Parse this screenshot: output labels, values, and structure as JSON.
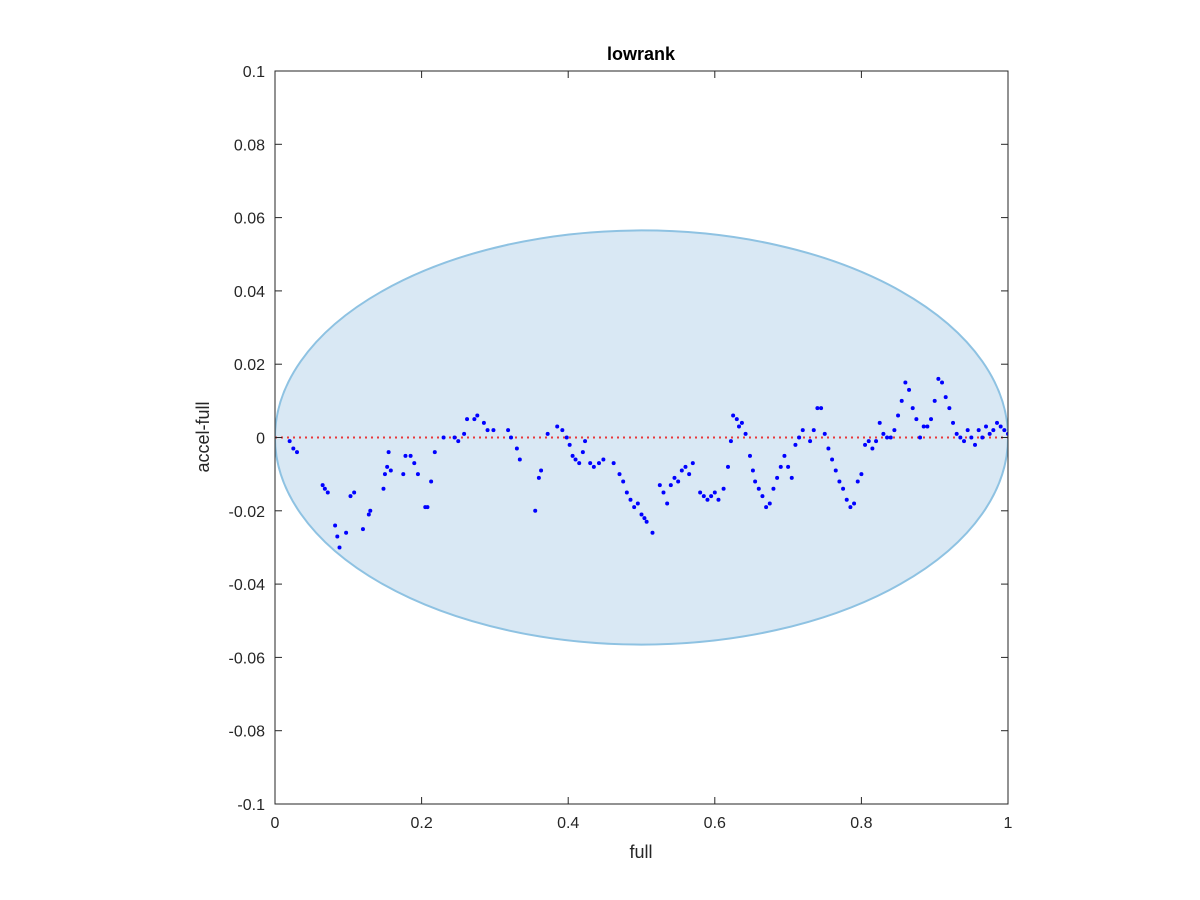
{
  "chart_data": {
    "type": "scatter",
    "title": "lowrank",
    "xlabel": "full",
    "ylabel": "accel-full",
    "xlim": [
      0,
      1
    ],
    "ylim": [
      -0.1,
      0.1
    ],
    "xticks": [
      0,
      0.2,
      0.4,
      0.6,
      0.8,
      1
    ],
    "xtick_labels": [
      "0",
      "0.2",
      "0.4",
      "0.6",
      "0.8",
      "1"
    ],
    "yticks": [
      -0.1,
      -0.08,
      -0.06,
      -0.04,
      -0.02,
      0,
      0.02,
      0.04,
      0.06,
      0.08,
      0.1
    ],
    "ytick_labels": [
      "-0.1",
      "-0.08",
      "-0.06",
      "-0.04",
      "-0.02",
      "0",
      "0.02",
      "0.04",
      "0.06",
      "0.08",
      "0.1"
    ],
    "grid": false,
    "reference_line": {
      "y": 0,
      "style": "dotted",
      "color": "#e8393b"
    },
    "ellipse_region": {
      "center": [
        0.5,
        0
      ],
      "semi_axes": [
        0.5,
        0.0565
      ],
      "fill": "#d9e8f4",
      "stroke": "#8ec2e2"
    },
    "point_color": "#0000ff",
    "points": [
      [
        0.02,
        -0.001
      ],
      [
        0.025,
        -0.003
      ],
      [
        0.03,
        -0.004
      ],
      [
        0.065,
        -0.013
      ],
      [
        0.068,
        -0.014
      ],
      [
        0.072,
        -0.015
      ],
      [
        0.082,
        -0.024
      ],
      [
        0.085,
        -0.027
      ],
      [
        0.088,
        -0.03
      ],
      [
        0.097,
        -0.026
      ],
      [
        0.103,
        -0.016
      ],
      [
        0.108,
        -0.015
      ],
      [
        0.12,
        -0.025
      ],
      [
        0.128,
        -0.021
      ],
      [
        0.13,
        -0.02
      ],
      [
        0.148,
        -0.014
      ],
      [
        0.15,
        -0.01
      ],
      [
        0.153,
        -0.008
      ],
      [
        0.155,
        -0.004
      ],
      [
        0.158,
        -0.009
      ],
      [
        0.175,
        -0.01
      ],
      [
        0.178,
        -0.005
      ],
      [
        0.185,
        -0.005
      ],
      [
        0.19,
        -0.007
      ],
      [
        0.195,
        -0.01
      ],
      [
        0.205,
        -0.019
      ],
      [
        0.208,
        -0.019
      ],
      [
        0.213,
        -0.012
      ],
      [
        0.218,
        -0.004
      ],
      [
        0.23,
        0.0
      ],
      [
        0.245,
        0.0
      ],
      [
        0.25,
        -0.001
      ],
      [
        0.258,
        0.001
      ],
      [
        0.262,
        0.005
      ],
      [
        0.272,
        0.005
      ],
      [
        0.276,
        0.006
      ],
      [
        0.285,
        0.004
      ],
      [
        0.29,
        0.002
      ],
      [
        0.298,
        0.002
      ],
      [
        0.318,
        0.002
      ],
      [
        0.322,
        0.0
      ],
      [
        0.33,
        -0.003
      ],
      [
        0.334,
        -0.006
      ],
      [
        0.355,
        -0.02
      ],
      [
        0.36,
        -0.011
      ],
      [
        0.363,
        -0.009
      ],
      [
        0.372,
        0.001
      ],
      [
        0.385,
        0.003
      ],
      [
        0.392,
        0.002
      ],
      [
        0.398,
        0.0
      ],
      [
        0.402,
        -0.002
      ],
      [
        0.406,
        -0.005
      ],
      [
        0.41,
        -0.006
      ],
      [
        0.415,
        -0.007
      ],
      [
        0.42,
        -0.004
      ],
      [
        0.423,
        -0.001
      ],
      [
        0.43,
        -0.007
      ],
      [
        0.435,
        -0.008
      ],
      [
        0.442,
        -0.007
      ],
      [
        0.448,
        -0.006
      ],
      [
        0.462,
        -0.007
      ],
      [
        0.47,
        -0.01
      ],
      [
        0.475,
        -0.012
      ],
      [
        0.48,
        -0.015
      ],
      [
        0.485,
        -0.017
      ],
      [
        0.49,
        -0.019
      ],
      [
        0.495,
        -0.018
      ],
      [
        0.5,
        -0.021
      ],
      [
        0.504,
        -0.022
      ],
      [
        0.507,
        -0.023
      ],
      [
        0.515,
        -0.026
      ],
      [
        0.525,
        -0.013
      ],
      [
        0.53,
        -0.015
      ],
      [
        0.535,
        -0.018
      ],
      [
        0.54,
        -0.013
      ],
      [
        0.545,
        -0.011
      ],
      [
        0.55,
        -0.012
      ],
      [
        0.555,
        -0.009
      ],
      [
        0.56,
        -0.008
      ],
      [
        0.565,
        -0.01
      ],
      [
        0.57,
        -0.007
      ],
      [
        0.58,
        -0.015
      ],
      [
        0.585,
        -0.016
      ],
      [
        0.59,
        -0.017
      ],
      [
        0.595,
        -0.016
      ],
      [
        0.6,
        -0.015
      ],
      [
        0.605,
        -0.017
      ],
      [
        0.612,
        -0.014
      ],
      [
        0.618,
        -0.008
      ],
      [
        0.622,
        -0.001
      ],
      [
        0.625,
        0.006
      ],
      [
        0.63,
        0.005
      ],
      [
        0.633,
        0.003
      ],
      [
        0.637,
        0.004
      ],
      [
        0.642,
        0.001
      ],
      [
        0.648,
        -0.005
      ],
      [
        0.652,
        -0.009
      ],
      [
        0.655,
        -0.012
      ],
      [
        0.66,
        -0.014
      ],
      [
        0.665,
        -0.016
      ],
      [
        0.67,
        -0.019
      ],
      [
        0.675,
        -0.018
      ],
      [
        0.68,
        -0.014
      ],
      [
        0.685,
        -0.011
      ],
      [
        0.69,
        -0.008
      ],
      [
        0.695,
        -0.005
      ],
      [
        0.7,
        -0.008
      ],
      [
        0.705,
        -0.011
      ],
      [
        0.71,
        -0.002
      ],
      [
        0.715,
        0.0
      ],
      [
        0.72,
        0.002
      ],
      [
        0.73,
        -0.001
      ],
      [
        0.735,
        0.002
      ],
      [
        0.74,
        0.008
      ],
      [
        0.745,
        0.008
      ],
      [
        0.75,
        0.001
      ],
      [
        0.755,
        -0.003
      ],
      [
        0.76,
        -0.006
      ],
      [
        0.765,
        -0.009
      ],
      [
        0.77,
        -0.012
      ],
      [
        0.775,
        -0.014
      ],
      [
        0.78,
        -0.017
      ],
      [
        0.785,
        -0.019
      ],
      [
        0.79,
        -0.018
      ],
      [
        0.795,
        -0.012
      ],
      [
        0.8,
        -0.01
      ],
      [
        0.805,
        -0.002
      ],
      [
        0.81,
        -0.001
      ],
      [
        0.815,
        -0.003
      ],
      [
        0.82,
        -0.001
      ],
      [
        0.825,
        0.004
      ],
      [
        0.83,
        0.001
      ],
      [
        0.835,
        0.0
      ],
      [
        0.84,
        0.0
      ],
      [
        0.845,
        0.002
      ],
      [
        0.85,
        0.006
      ],
      [
        0.855,
        0.01
      ],
      [
        0.86,
        0.015
      ],
      [
        0.865,
        0.013
      ],
      [
        0.87,
        0.008
      ],
      [
        0.875,
        0.005
      ],
      [
        0.88,
        0.0
      ],
      [
        0.885,
        0.003
      ],
      [
        0.89,
        0.003
      ],
      [
        0.895,
        0.005
      ],
      [
        0.9,
        0.01
      ],
      [
        0.905,
        0.016
      ],
      [
        0.91,
        0.015
      ],
      [
        0.915,
        0.011
      ],
      [
        0.92,
        0.008
      ],
      [
        0.925,
        0.004
      ],
      [
        0.93,
        0.001
      ],
      [
        0.935,
        0.0
      ],
      [
        0.94,
        -0.001
      ],
      [
        0.945,
        0.002
      ],
      [
        0.95,
        0.0
      ],
      [
        0.955,
        -0.002
      ],
      [
        0.96,
        0.002
      ],
      [
        0.965,
        0.0
      ],
      [
        0.97,
        0.003
      ],
      [
        0.975,
        0.001
      ],
      [
        0.98,
        0.002
      ],
      [
        0.985,
        0.004
      ],
      [
        0.99,
        0.003
      ],
      [
        0.995,
        0.002
      ],
      [
        1.0,
        0.001
      ]
    ]
  }
}
